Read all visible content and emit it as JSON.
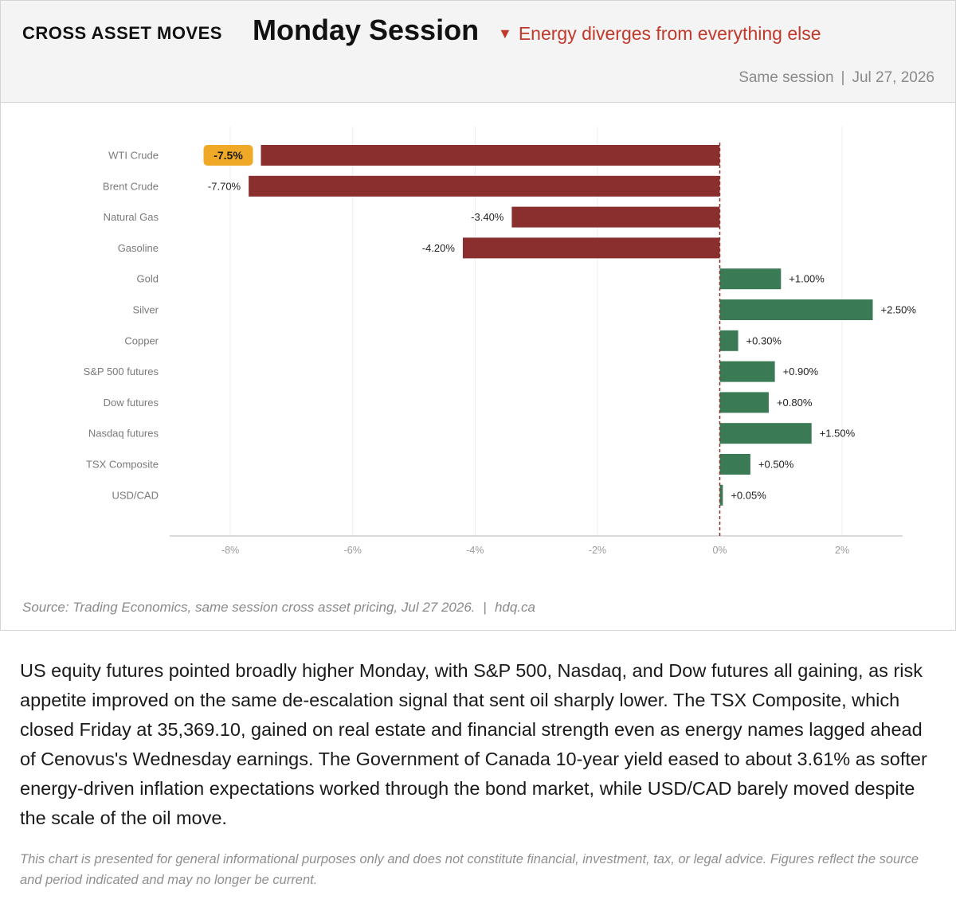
{
  "header": {
    "kicker": "CROSS ASSET MOVES",
    "title": "Monday Session",
    "alert_icon": "down-triangle-icon",
    "alert_text": "Energy diverges from everything else",
    "meta_session": "Same session",
    "meta_separator": "|",
    "meta_date": "Jul 27, 2026"
  },
  "colors": {
    "negative": "#8b2e2e",
    "positive": "#3a7a55",
    "highlight": "#f0a927",
    "alert": "#c0392b",
    "zero_line": "#8b2e2e"
  },
  "chart_data": {
    "type": "bar",
    "orientation": "horizontal",
    "categories": [
      "WTI Crude",
      "Brent Crude",
      "Natural Gas",
      "Gasoline",
      "Gold",
      "Silver",
      "Copper",
      "S&P 500 futures",
      "Dow futures",
      "Nasdaq futures",
      "TSX Composite",
      "USD/CAD"
    ],
    "values": [
      -7.5,
      -7.7,
      -3.4,
      -4.2,
      1.0,
      2.5,
      0.3,
      0.9,
      0.8,
      1.5,
      0.5,
      0.05
    ],
    "data_labels": [
      "-7.5%",
      "-7.70%",
      "-3.40%",
      "-4.20%",
      "+1.00%",
      "+2.50%",
      "+0.30%",
      "+0.90%",
      "+0.80%",
      "+1.50%",
      "+0.50%",
      "+0.05%"
    ],
    "highlighted_category": "WTI Crude",
    "xlim": [
      -9,
      3
    ],
    "x_ticks": [
      -8,
      -6,
      -4,
      -2,
      0,
      2
    ],
    "x_tick_labels": [
      "-8%",
      "-6%",
      "-4%",
      "-2%",
      "0%",
      "2%"
    ],
    "xlabel": "",
    "ylabel": "",
    "grid": "vertical",
    "zero_line": "dashed"
  },
  "source": {
    "text": "Source: Trading Economics, same session cross asset pricing, Jul 27 2026.",
    "separator": "|",
    "site": "hdq.ca"
  },
  "article": {
    "paragraph": "US equity futures pointed broadly higher Monday, with S&P 500, Nasdaq, and Dow futures all gaining, as risk appetite improved on the same de-escalation signal that sent oil sharply lower. The TSX Composite, which closed Friday at 35,369.10, gained on real estate and financial strength even as energy names lagged ahead of Cenovus's Wednesday earnings. The Government of Canada 10-year yield eased to about 3.61% as softer energy-driven inflation expectations worked through the bond market, while USD/CAD barely moved despite the scale of the oil move.",
    "disclaimer": "This chart is presented for general informational purposes only and does not constitute financial, investment, tax, or legal advice. Figures reflect the source and period indicated and may no longer be current."
  }
}
